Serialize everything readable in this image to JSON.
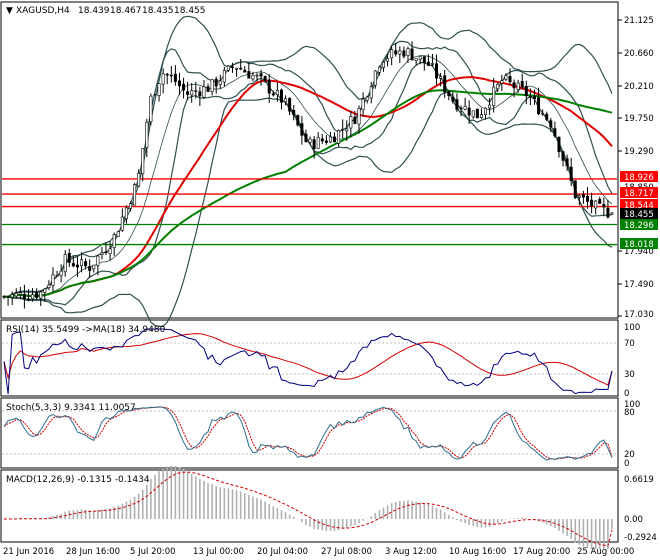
{
  "symbol_label": "XAGUSD,H4",
  "ohlc": [
    "18.439",
    "18.467",
    "18.435",
    "18.455"
  ],
  "colors": {
    "bg": "#ffffff",
    "candle": "#000000",
    "ma_red": "#e00000",
    "ma_green": "#008000",
    "bands": "#2f4f4f",
    "rsi": "#000080",
    "rsi_ma": "#d00000",
    "stoch_main": "#2f6f8f",
    "stoch_signal": "#d00000",
    "macd_hist": "#b0b0b0",
    "macd_signal": "#d00000",
    "level_red": "#ff0000",
    "level_green": "#008000",
    "current_tag": "#000000"
  },
  "price_axis": {
    "ticks": [
      "21.125",
      "20.660",
      "20.210",
      "19.750",
      "19.290",
      "18.835",
      "17.940",
      "17.490",
      "17.030"
    ],
    "tags": [
      {
        "label": "18.926",
        "type": "red",
        "value": 18.926
      },
      {
        "label": "18.850",
        "type": "gray",
        "value": 18.85
      },
      {
        "label": "18.717",
        "type": "red",
        "value": 18.717
      },
      {
        "label": "18.544",
        "type": "red",
        "value": 18.544
      },
      {
        "label": "18.455",
        "type": "black",
        "value": 18.455
      },
      {
        "label": "18.296",
        "type": "green",
        "value": 18.296
      },
      {
        "label": "18.018",
        "type": "green",
        "value": 18.018
      }
    ]
  },
  "panels": {
    "rsi": {
      "title": "RSI(14) 35.5499 ->MA(18) 34.9480",
      "ticks": [
        "100",
        "70",
        "30",
        "0"
      ]
    },
    "stoch": {
      "title": "Stoch(5,3,3) 9.3341 11.0057",
      "ticks": [
        "100",
        "80",
        "20",
        "0"
      ]
    },
    "macd": {
      "title": "MACD(12,26,9) -0.1315 -0.1434",
      "ticks": [
        "0.6619",
        "0.00",
        "-0.2924"
      ]
    }
  },
  "time_axis": [
    "21 Jun 2016",
    "28 Jun 16:00",
    "5 Jul 20:00",
    "13 Jul 00:00",
    "20 Jul 04:00",
    "27 Jul 08:00",
    "3 Aug 12:00",
    "10 Aug 16:00",
    "17 Aug 20:00",
    "25 Aug 00:00"
  ],
  "chart_data": {
    "type": "candlestick",
    "title": "XAGUSD,H4",
    "y_range": [
      16.9,
      21.2
    ],
    "horizontal_levels": [
      18.926,
      18.717,
      18.544,
      18.296,
      18.018
    ],
    "price_path": [
      [
        0,
        17.3
      ],
      [
        6,
        17.35
      ],
      [
        10,
        17.8
      ],
      [
        14,
        17.7
      ],
      [
        18,
        18.1
      ],
      [
        22,
        18.9
      ],
      [
        24,
        20.0
      ],
      [
        26,
        20.4
      ],
      [
        28,
        20.3
      ],
      [
        30,
        20.1
      ],
      [
        34,
        20.2
      ],
      [
        38,
        20.5
      ],
      [
        42,
        20.3
      ],
      [
        46,
        20.0
      ],
      [
        50,
        19.4
      ],
      [
        54,
        19.5
      ],
      [
        58,
        19.8
      ],
      [
        62,
        20.6
      ],
      [
        66,
        20.7
      ],
      [
        70,
        20.5
      ],
      [
        74,
        20.0
      ],
      [
        78,
        19.8
      ],
      [
        82,
        20.3
      ],
      [
        86,
        20.1
      ],
      [
        90,
        19.7
      ],
      [
        94,
        18.7
      ],
      [
        98,
        18.5
      ],
      [
        100,
        18.455
      ]
    ],
    "rsi_last": 35.5499,
    "rsi_ma_last": 34.948,
    "stoch_main_last": 9.3341,
    "stoch_signal_last": 11.0057,
    "macd_last": -0.1315,
    "macd_signal_last": -0.1434
  }
}
